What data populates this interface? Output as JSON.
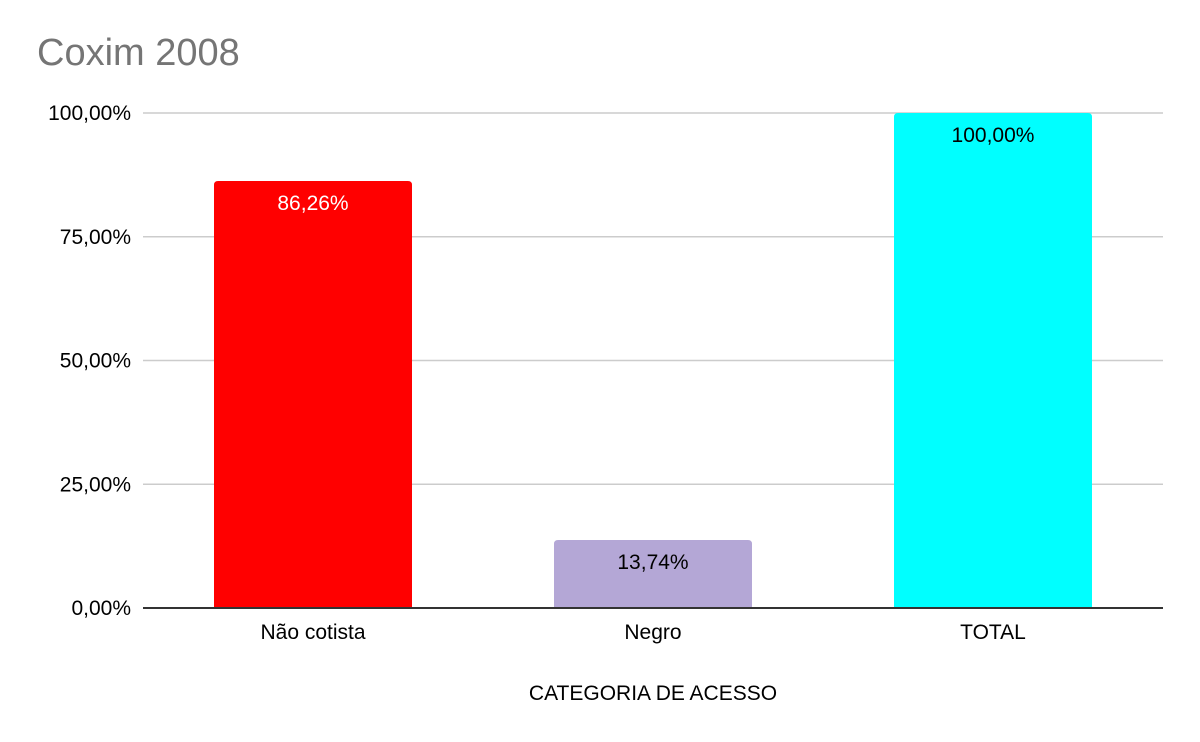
{
  "chart_data": {
    "type": "bar",
    "title": "Coxim 2008",
    "xlabel": "CATEGORIA DE ACESSO",
    "ylabel": "",
    "categories": [
      "Não cotista",
      "Negro",
      "TOTAL"
    ],
    "values": [
      86.26,
      13.74,
      100.0
    ],
    "value_labels": [
      "86,26%",
      "13,74%",
      "100,00%"
    ],
    "bar_colors": [
      "#ff0000",
      "#b4a7d6",
      "#00ffff"
    ],
    "value_label_colors": [
      "#ffffff",
      "#000000",
      "#000000"
    ],
    "ylim": [
      0,
      100
    ],
    "yticks": [
      0,
      25,
      50,
      75,
      100
    ],
    "ytick_labels": [
      "0,00%",
      "25,00%",
      "50,00%",
      "75,00%",
      "100,00%"
    ],
    "grid": true,
    "legend": "none"
  }
}
